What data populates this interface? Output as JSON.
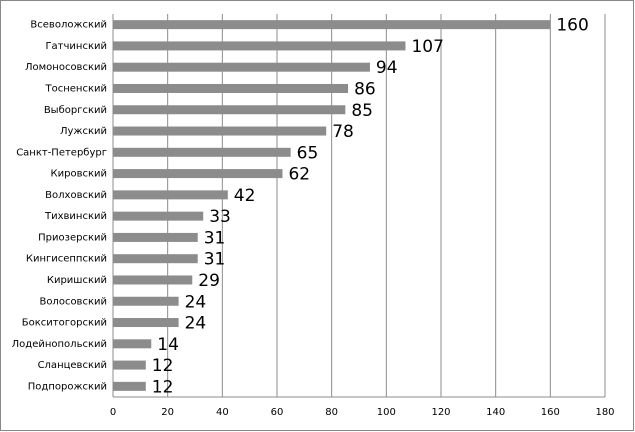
{
  "chart_data": {
    "type": "bar",
    "orientation": "horizontal",
    "categories": [
      "Всеволожский",
      "Гатчинский",
      "Ломоносовский",
      "Тосненский",
      "Выборгский",
      "Лужский",
      "Санкт-Петербург",
      "Кировский",
      "Волховский",
      "Тихвинский",
      "Приозерский",
      "Кингисеппский",
      "Киришский",
      "Волосовский",
      "Бокситогорский",
      "Лодейнопольский",
      "Сланцевский",
      "Подпорожский"
    ],
    "values": [
      160,
      107,
      94,
      86,
      85,
      78,
      65,
      62,
      42,
      33,
      31,
      31,
      29,
      24,
      24,
      14,
      12,
      12
    ],
    "color": "#8c8c8c",
    "xlim": [
      0,
      180
    ],
    "xticks": [
      0,
      20,
      40,
      60,
      80,
      100,
      120,
      140,
      160,
      180
    ],
    "grid": true
  }
}
